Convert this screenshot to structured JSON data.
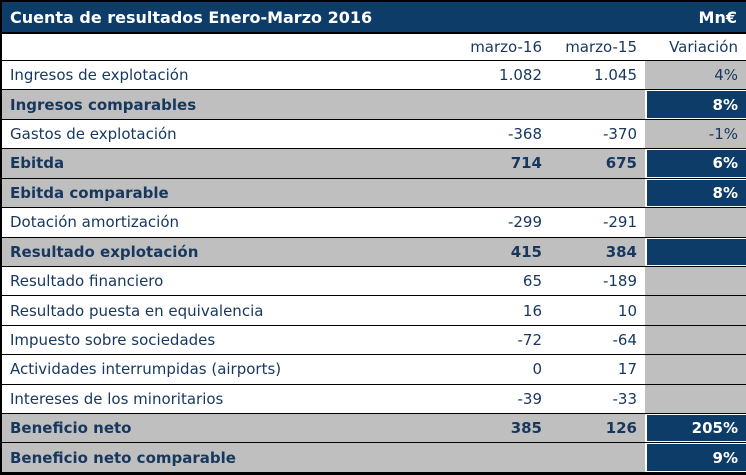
{
  "title": {
    "text": "Cuenta de resultados Enero-Marzo 2016",
    "unit": "Mn€"
  },
  "columns": {
    "marzo16": "marzo-16",
    "marzo15": "marzo-15",
    "variacion": "Variación"
  },
  "rows": [
    {
      "label": "Ingresos de explotación",
      "marzo16": "1.082",
      "marzo15": "1.045",
      "variacion": "4%",
      "highlight": false,
      "variacion_style": "gray"
    },
    {
      "label": "Ingresos comparables",
      "marzo16": "",
      "marzo15": "",
      "variacion": "8%",
      "highlight": true,
      "variacion_style": "navy"
    },
    {
      "label": "Gastos de explotación",
      "marzo16": "-368",
      "marzo15": "-370",
      "variacion": "-1%",
      "highlight": false,
      "variacion_style": "gray"
    },
    {
      "label": "Ebitda",
      "marzo16": "714",
      "marzo15": "675",
      "variacion": "6%",
      "highlight": true,
      "variacion_style": "navy"
    },
    {
      "label": "Ebitda comparable",
      "marzo16": "",
      "marzo15": "",
      "variacion": "8%",
      "highlight": true,
      "variacion_style": "navy"
    },
    {
      "label": "Dotación amortización",
      "marzo16": "-299",
      "marzo15": "-291",
      "variacion": "",
      "highlight": false,
      "variacion_style": "gray"
    },
    {
      "label": "Resultado explotación",
      "marzo16": "415",
      "marzo15": "384",
      "variacion": "",
      "highlight": true,
      "variacion_style": "navy"
    },
    {
      "label": "Resultado financiero",
      "marzo16": "65",
      "marzo15": "-189",
      "variacion": "",
      "highlight": false,
      "variacion_style": "gray"
    },
    {
      "label": "Resultado puesta en equivalencia",
      "marzo16": "16",
      "marzo15": "10",
      "variacion": "",
      "highlight": false,
      "variacion_style": "gray"
    },
    {
      "label": "Impuesto sobre sociedades",
      "marzo16": "-72",
      "marzo15": "-64",
      "variacion": "",
      "highlight": false,
      "variacion_style": "gray"
    },
    {
      "label": "Actividades interrumpidas (airports)",
      "marzo16": "0",
      "marzo15": "17",
      "variacion": "",
      "highlight": false,
      "variacion_style": "gray"
    },
    {
      "label": "Intereses de los minoritarios",
      "marzo16": "-39",
      "marzo15": "-33",
      "variacion": "",
      "highlight": false,
      "variacion_style": "gray"
    },
    {
      "label": "Beneficio neto",
      "marzo16": "385",
      "marzo15": "126",
      "variacion": "205%",
      "highlight": true,
      "variacion_style": "navy"
    },
    {
      "label": "Beneficio neto comparable",
      "marzo16": "",
      "marzo15": "",
      "variacion": "9%",
      "highlight": true,
      "variacion_style": "navy"
    }
  ],
  "colors": {
    "navy": "#0d3c69",
    "gray": "#bfbfbf",
    "text": "#17375e",
    "border": "#000000"
  }
}
